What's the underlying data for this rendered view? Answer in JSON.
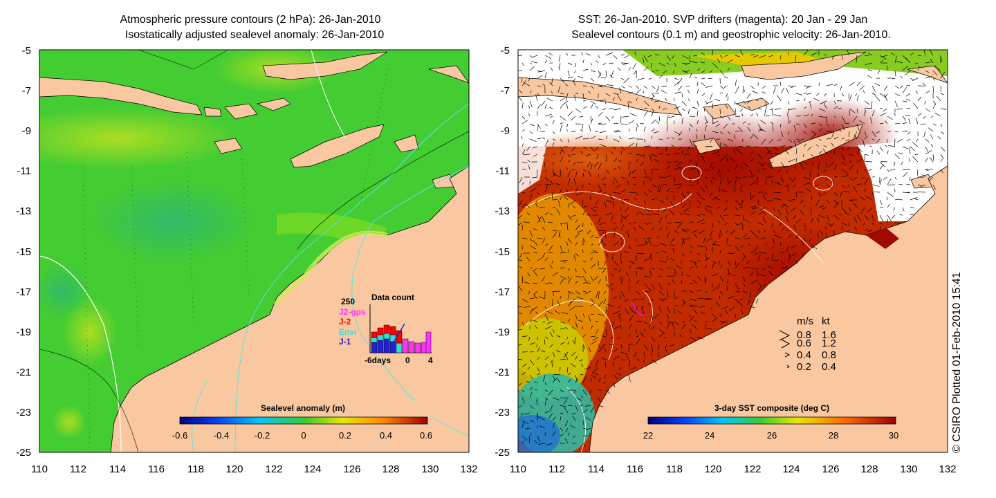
{
  "left_panel": {
    "title_line1": "Atmospheric pressure contours (2 hPa): 26-Jan-2010",
    "title_line2": "Isostatically adjusted sealevel anomaly: 26-Jan-2010",
    "colorbar": {
      "label": "Sealevel anomaly (m)",
      "ticks": [
        "-0.6",
        "-0.4",
        "-0.2",
        "0",
        "0.2",
        "0.4",
        "0.6"
      ]
    },
    "inset": {
      "title": "Data count",
      "ymax_label": "250",
      "legend": [
        {
          "label": "J2-gps",
          "color": "#ff33ff"
        },
        {
          "label": "J-2",
          "color": "#ff0000"
        },
        {
          "label": "Envi",
          "color": "#33dddd"
        },
        {
          "label": "J-1",
          "color": "#2222cc"
        }
      ],
      "xlabel_left": "-6days",
      "xlabel_mid": "0",
      "xlabel_right": "4"
    }
  },
  "right_panel": {
    "title_line1": "SST: 26-Jan-2010. SVP drifters (magenta): 20 Jan - 29 Jan",
    "title_line2": "Sealevel contours (0.1 m) and geostrophic velocity: 26-Jan-2010.",
    "colorbar": {
      "label": "3-day SST composite (deg C)",
      "ticks": [
        "22",
        "24",
        "26",
        "28",
        "30"
      ]
    },
    "velocity_legend": {
      "header_ms": "m/s",
      "header_kt": "kt",
      "rows": [
        {
          "ms": "0.8",
          "kt": "1.6"
        },
        {
          "ms": "0.6",
          "kt": "1.2"
        },
        {
          "ms": "0.4",
          "kt": "0.8"
        },
        {
          "ms": "0.2",
          "kt": "0.4"
        }
      ]
    }
  },
  "axes": {
    "lat_ticks": [
      "-5",
      "-7",
      "-9",
      "-11",
      "-13",
      "-15",
      "-17",
      "-19",
      "-21",
      "-23",
      "-25"
    ],
    "lon_ticks": [
      "110",
      "112",
      "114",
      "116",
      "118",
      "120",
      "122",
      "124",
      "126",
      "128",
      "130",
      "132"
    ]
  },
  "credit": "© CSIRO Plotted 01-Feb-2010 15:41",
  "colors": {
    "land": "#f9c8a0",
    "sea_green": "#44cc33",
    "sst_hot": "#b80d00"
  }
}
